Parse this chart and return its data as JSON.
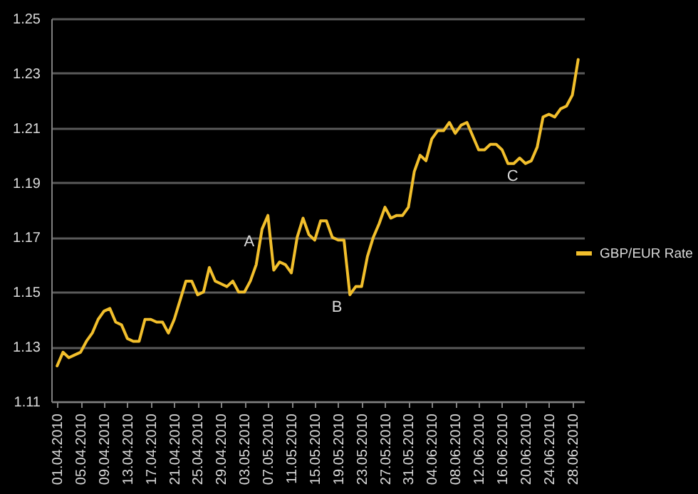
{
  "chart_data": {
    "type": "line",
    "legend": "right",
    "grid": "y",
    "line_style": "solid",
    "marker": "none",
    "x": [
      "2010-04-01",
      "2010-04-02",
      "2010-04-03",
      "2010-04-04",
      "2010-04-05",
      "2010-04-06",
      "2010-04-07",
      "2010-04-08",
      "2010-04-09",
      "2010-04-10",
      "2010-04-11",
      "2010-04-12",
      "2010-04-13",
      "2010-04-14",
      "2010-04-15",
      "2010-04-16",
      "2010-04-17",
      "2010-04-18",
      "2010-04-19",
      "2010-04-20",
      "2010-04-21",
      "2010-04-22",
      "2010-04-23",
      "2010-04-24",
      "2010-04-25",
      "2010-04-26",
      "2010-04-27",
      "2010-04-28",
      "2010-04-29",
      "2010-04-30",
      "2010-05-01",
      "2010-05-02",
      "2010-05-03",
      "2010-05-04",
      "2010-05-05",
      "2010-05-06",
      "2010-05-07",
      "2010-05-08",
      "2010-05-09",
      "2010-05-10",
      "2010-05-11",
      "2010-05-12",
      "2010-05-13",
      "2010-05-14",
      "2010-05-15",
      "2010-05-16",
      "2010-05-17",
      "2010-05-18",
      "2010-05-19",
      "2010-05-20",
      "2010-05-21",
      "2010-05-22",
      "2010-05-23",
      "2010-05-24",
      "2010-05-25",
      "2010-05-26",
      "2010-05-27",
      "2010-05-28",
      "2010-05-29",
      "2010-05-30",
      "2010-05-31",
      "2010-06-01",
      "2010-06-02",
      "2010-06-03",
      "2010-06-04",
      "2010-06-05",
      "2010-06-06",
      "2010-06-07",
      "2010-06-08",
      "2010-06-09",
      "2010-06-10",
      "2010-06-11",
      "2010-06-12",
      "2010-06-13",
      "2010-06-14",
      "2010-06-15",
      "2010-06-16",
      "2010-06-17",
      "2010-06-18",
      "2010-06-19",
      "2010-06-20",
      "2010-06-21",
      "2010-06-22",
      "2010-06-23",
      "2010-06-24",
      "2010-06-25",
      "2010-06-26",
      "2010-06-27",
      "2010-06-28",
      "2010-06-29"
    ],
    "series": [
      {
        "name": "GBP/EUR Rate",
        "color": "#f2bf2c",
        "values": [
          1.123,
          1.128,
          1.126,
          1.127,
          1.128,
          1.132,
          1.135,
          1.14,
          1.143,
          1.144,
          1.139,
          1.138,
          1.133,
          1.132,
          1.132,
          1.14,
          1.14,
          1.139,
          1.139,
          1.135,
          1.14,
          1.147,
          1.154,
          1.154,
          1.149,
          1.15,
          1.159,
          1.154,
          1.153,
          1.152,
          1.154,
          1.15,
          1.15,
          1.154,
          1.16,
          1.173,
          1.178,
          1.158,
          1.161,
          1.16,
          1.157,
          1.17,
          1.177,
          1.171,
          1.169,
          1.176,
          1.176,
          1.17,
          1.169,
          1.169,
          1.149,
          1.152,
          1.152,
          1.163,
          1.17,
          1.175,
          1.181,
          1.177,
          1.178,
          1.178,
          1.181,
          1.194,
          1.2,
          1.198,
          1.206,
          1.209,
          1.209,
          1.212,
          1.208,
          1.211,
          1.212,
          1.207,
          1.202,
          1.202,
          1.204,
          1.204,
          1.202,
          1.197,
          1.197,
          1.199,
          1.197,
          1.198,
          1.203,
          1.214,
          1.215,
          1.214,
          1.217,
          1.218,
          1.222,
          1.235
        ]
      }
    ],
    "xlim": [
      "2010-03-31",
      "2010-06-30"
    ],
    "xticks": [
      {
        "value": "2010-04-01",
        "label": "01.04.2010"
      },
      {
        "value": "2010-04-05",
        "label": "05.04.2010"
      },
      {
        "value": "2010-04-09",
        "label": "09.04.2010"
      },
      {
        "value": "2010-04-13",
        "label": "13.04.2010"
      },
      {
        "value": "2010-04-17",
        "label": "17.04.2010"
      },
      {
        "value": "2010-04-21",
        "label": "21.04.2010"
      },
      {
        "value": "2010-04-25",
        "label": "25.04.2010"
      },
      {
        "value": "2010-04-29",
        "label": "29.04.2010"
      },
      {
        "value": "2010-05-03",
        "label": "03.05.2010"
      },
      {
        "value": "2010-05-07",
        "label": "07.05.2010"
      },
      {
        "value": "2010-05-11",
        "label": "11.05.2010"
      },
      {
        "value": "2010-05-15",
        "label": "15.05.2010"
      },
      {
        "value": "2010-05-19",
        "label": "19.05.2010"
      },
      {
        "value": "2010-05-23",
        "label": "23.05.2010"
      },
      {
        "value": "2010-05-27",
        "label": "27.05.2010"
      },
      {
        "value": "2010-05-31",
        "label": "31.05.2010"
      },
      {
        "value": "2010-06-04",
        "label": "04.06.2010"
      },
      {
        "value": "2010-06-08",
        "label": "08.06.2010"
      },
      {
        "value": "2010-06-12",
        "label": "12.06.2010"
      },
      {
        "value": "2010-06-16",
        "label": "16.06.2010"
      },
      {
        "value": "2010-06-20",
        "label": "20.06.2010"
      },
      {
        "value": "2010-06-24",
        "label": "24.06.2010"
      },
      {
        "value": "2010-06-28",
        "label": "28.06.2010"
      }
    ],
    "ylim": [
      1.11,
      1.25
    ],
    "yticks": [
      1.11,
      1.13,
      1.15,
      1.17,
      1.19,
      1.21,
      1.23,
      1.25
    ],
    "annotations": [
      {
        "text": "A",
        "x": "2010-05-06",
        "y": 1.173
      },
      {
        "text": "B",
        "x": "2010-05-21",
        "y": 1.149
      },
      {
        "text": "C",
        "x": "2010-06-20",
        "y": 1.197
      }
    ]
  }
}
